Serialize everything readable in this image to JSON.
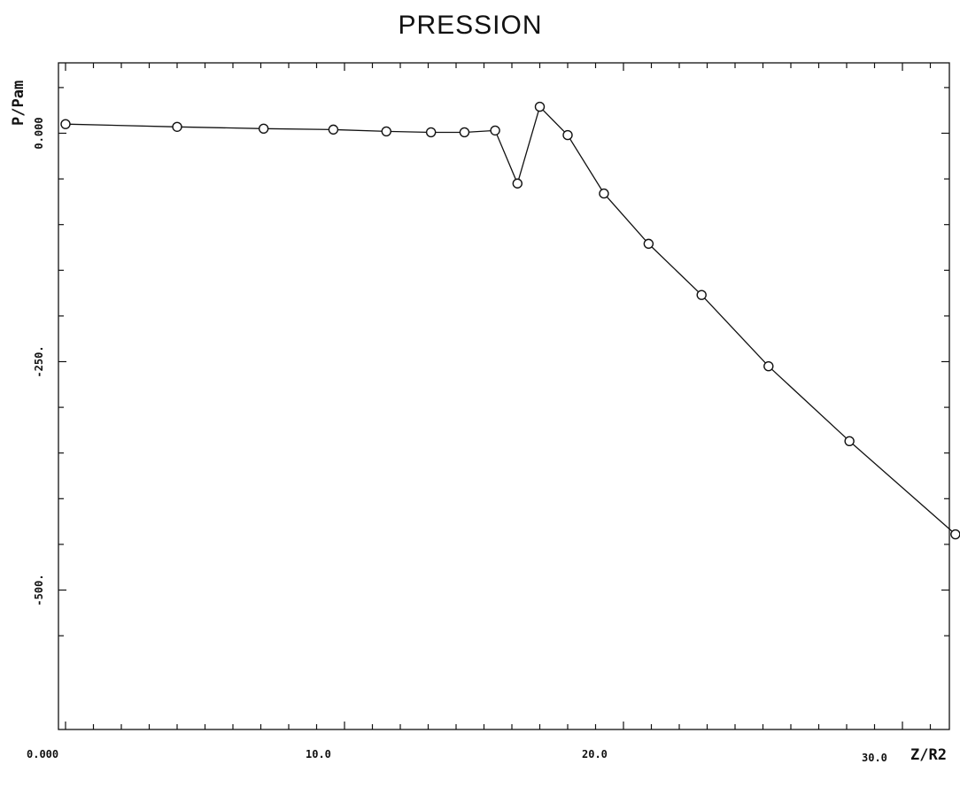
{
  "chart_data": {
    "type": "line",
    "title": "PRESSION",
    "xlabel": "Z/R2",
    "ylabel": "P/Pam",
    "xlim": [
      0,
      32.4
    ],
    "ylim": [
      -570,
      75
    ],
    "x_tick_labels": [
      "0.000",
      "10.0",
      "20.0",
      "30.0"
    ],
    "y_tick_labels": [
      "0.000",
      "-250.",
      "-500."
    ],
    "grid": false,
    "marker": "circle",
    "series": [
      {
        "x": [
          0.0,
          4.0,
          7.1,
          9.6,
          11.5,
          13.1,
          14.3,
          15.4,
          16.2,
          17.0,
          18.0,
          19.3,
          20.9,
          22.8,
          25.2,
          28.1,
          31.9
        ],
        "y": [
          10,
          7,
          5,
          4,
          2,
          1,
          1,
          3,
          -55,
          29,
          -2,
          -66,
          -121,
          -177,
          -255,
          -337,
          -439
        ]
      }
    ]
  }
}
